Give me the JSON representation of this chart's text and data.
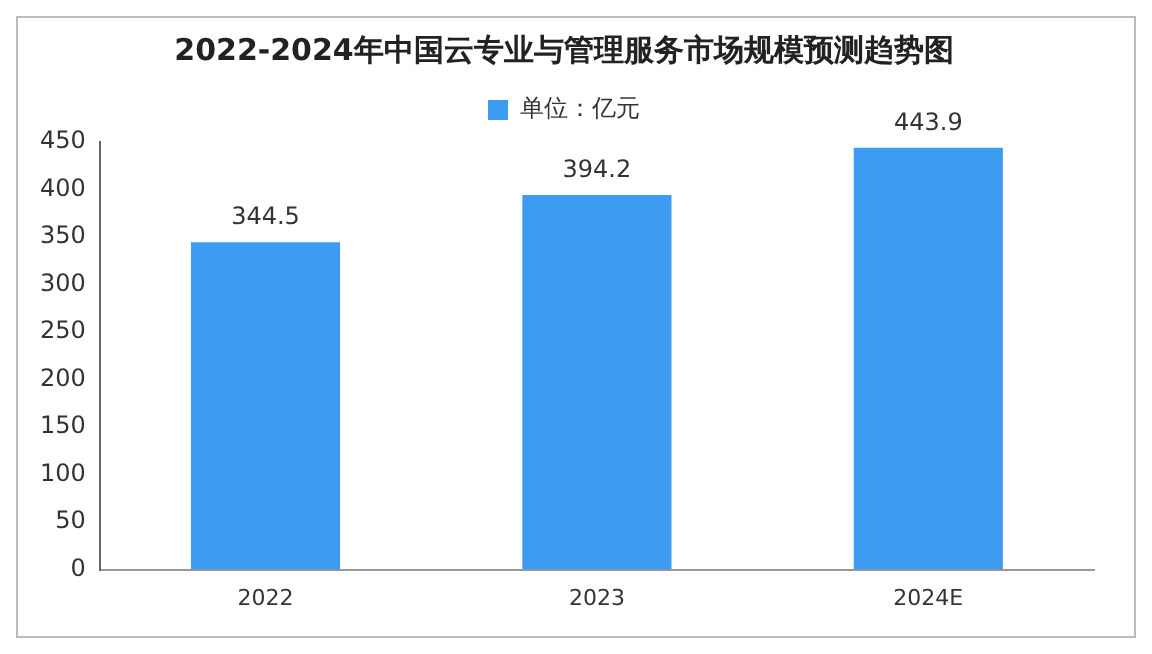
{
  "chart_data": {
    "type": "bar",
    "title": "2022-2024年中国云专业与管理服务市场规模预测趋势图",
    "categories": [
      "2022",
      "2023",
      "2024E"
    ],
    "series": [
      {
        "name": "单位：亿元",
        "color": "#3d9cf2",
        "values": [
          344.5,
          394.2,
          443.9
        ]
      }
    ],
    "ylim": [
      0,
      450
    ],
    "yticks": [
      0,
      50,
      100,
      150,
      200,
      250,
      300,
      350,
      400,
      450
    ],
    "grid": false,
    "legend": "top",
    "data_labels": true
  }
}
